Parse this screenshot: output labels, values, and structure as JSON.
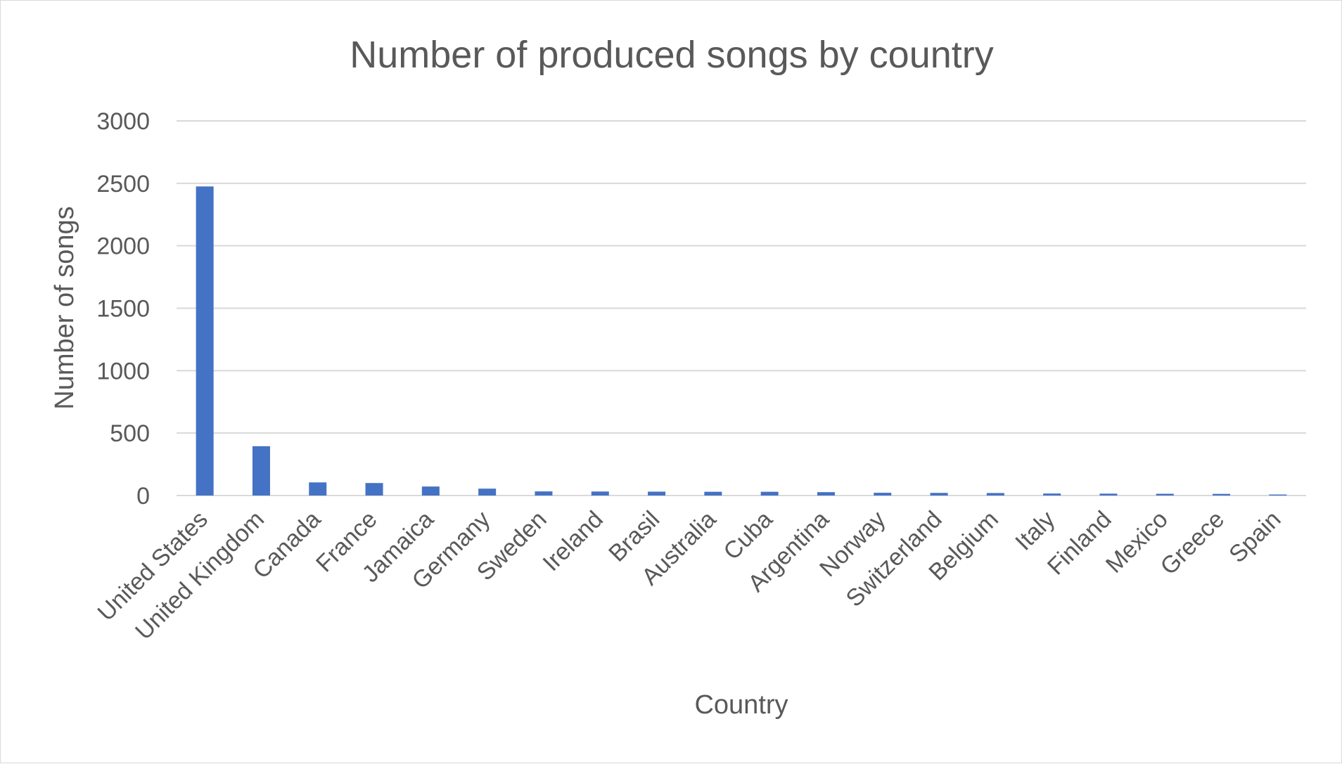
{
  "chart_data": {
    "type": "bar",
    "title": "Number of produced songs by country",
    "xlabel": "Country",
    "ylabel": "Number of songs",
    "ylim": [
      0,
      3000
    ],
    "yticks": [
      0,
      500,
      1000,
      1500,
      2000,
      2500,
      3000
    ],
    "grid": true,
    "legend": "none",
    "bar_color": "#4472C4",
    "categories": [
      "United States",
      "United Kingdom",
      "Canada",
      "France",
      "Jamaica",
      "Germany",
      "Sweden",
      "Ireland",
      "Brasil",
      "Australia",
      "Cuba",
      "Argentina",
      "Norway",
      "Switzerland",
      "Belgium",
      "Italy",
      "Finland",
      "Mexico",
      "Greece",
      "Spain"
    ],
    "values": [
      2475,
      395,
      105,
      100,
      72,
      55,
      33,
      32,
      31,
      30,
      30,
      27,
      22,
      21,
      20,
      16,
      15,
      14,
      13,
      8
    ]
  }
}
